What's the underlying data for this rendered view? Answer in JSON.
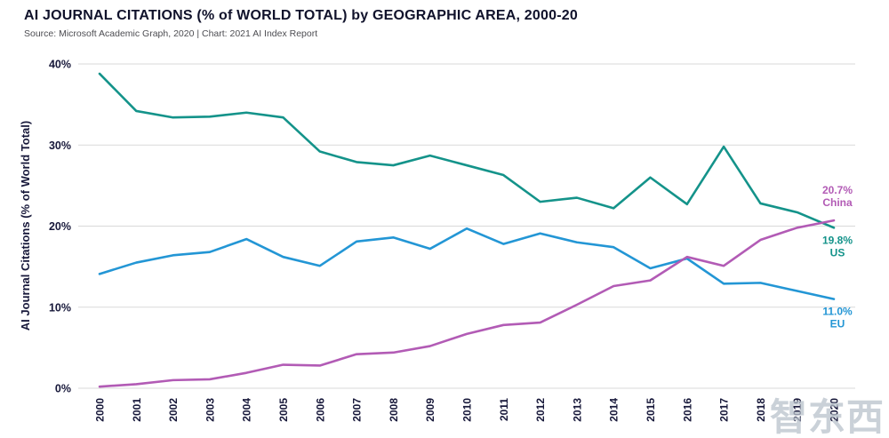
{
  "header": {
    "title": "AI JOURNAL CITATIONS (% of WORLD TOTAL) by GEOGRAPHIC AREA, 2000-20",
    "subtitle": "Source: Microsoft Academic Graph, 2020 | Chart: 2021 AI Index Report"
  },
  "watermark": {
    "text": "智东西"
  },
  "chart_data": {
    "type": "line",
    "title": "AI JOURNAL CITATIONS (% of WORLD TOTAL) by GEOGRAPHIC AREA, 2000-20",
    "xlabel": "",
    "ylabel": "AI Journal Citations (% of World Total)",
    "x": [
      2000,
      2001,
      2002,
      2003,
      2004,
      2005,
      2006,
      2007,
      2008,
      2009,
      2010,
      2011,
      2012,
      2013,
      2014,
      2015,
      2016,
      2017,
      2018,
      2019,
      2020
    ],
    "ylim": [
      0,
      40
    ],
    "yticks": [
      0,
      10,
      20,
      30,
      40
    ],
    "ytick_labels": [
      "0%",
      "10%",
      "20%",
      "30%",
      "40%"
    ],
    "grid": true,
    "legend_position": "none",
    "series": [
      {
        "name": "US",
        "color": "#14938a",
        "values": [
          38.8,
          34.2,
          33.4,
          33.5,
          34.0,
          33.4,
          29.2,
          27.9,
          27.5,
          28.7,
          27.5,
          26.3,
          23.0,
          23.5,
          22.2,
          26.0,
          22.7,
          29.8,
          22.8,
          21.7,
          19.8
        ]
      },
      {
        "name": "EU",
        "color": "#2396d5",
        "values": [
          14.1,
          15.5,
          16.4,
          16.8,
          18.4,
          16.2,
          15.1,
          18.1,
          18.6,
          17.2,
          19.7,
          17.8,
          19.1,
          18.0,
          17.4,
          14.8,
          16.0,
          12.9,
          13.0,
          12.0,
          11.0
        ]
      },
      {
        "name": "China",
        "color": "#b25bb5",
        "values": [
          0.2,
          0.5,
          1.0,
          1.1,
          1.9,
          2.9,
          2.8,
          4.2,
          4.4,
          5.2,
          6.7,
          7.8,
          8.1,
          10.3,
          12.6,
          13.3,
          16.2,
          15.1,
          18.3,
          19.8,
          20.7
        ]
      }
    ],
    "annotations": [
      {
        "value_label": "20.7%",
        "name": "China",
        "color": "#b25bb5",
        "series": "China",
        "position": "above"
      },
      {
        "value_label": "19.8%",
        "name": "US",
        "color": "#14938a",
        "series": "US",
        "position": "below"
      },
      {
        "value_label": "11.0%",
        "name": "EU",
        "color": "#2396d5",
        "series": "EU",
        "position": "below"
      }
    ]
  }
}
